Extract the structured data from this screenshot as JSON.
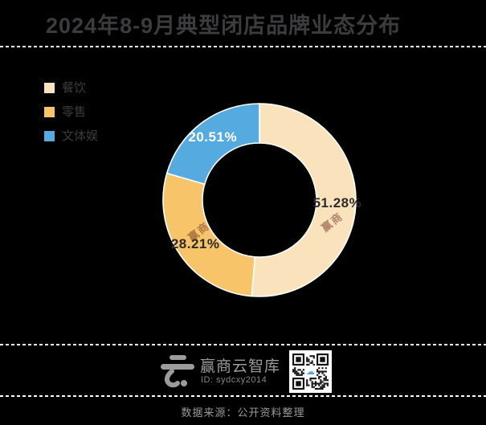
{
  "header": {
    "title": "2024年8-9月典型闭店品牌业态分布"
  },
  "chart_data": {
    "type": "pie",
    "donut": true,
    "title": "2024年8-9月典型闭店品牌业态分布",
    "legend_position": "left",
    "start_angle_deg": 0,
    "direction": "clockwise",
    "series": [
      {
        "name": "餐饮",
        "value": 51.28,
        "label": "51.28%",
        "color": "#fae3bc",
        "label_color": "#2b2b2b"
      },
      {
        "name": "零售",
        "value": 28.21,
        "label": "28.21%",
        "color": "#f8c469",
        "label_color": "#2b2b2b"
      },
      {
        "name": "文体娱",
        "value": 20.51,
        "label": "20.51%",
        "color": "#55abdf",
        "label_color": "#ffffff"
      }
    ]
  },
  "watermark": {
    "text": "赢商",
    "color": "#6b2a22"
  },
  "footer": {
    "brand": "赢商云智库",
    "brand_id": "ID: sydcxy2014",
    "source": "数据来源：公开资料整理"
  },
  "colors": {
    "background": "#000000",
    "title_text": "#3c3c3e",
    "divider": "#ffffff",
    "footer_text": "#9b9b9b",
    "qr_accent": "#55abdf"
  }
}
